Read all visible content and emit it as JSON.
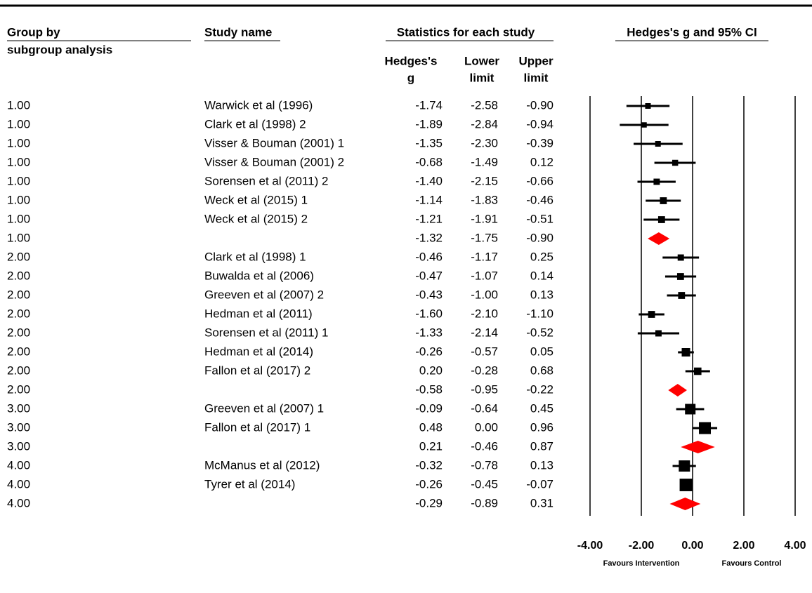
{
  "chart_data": {
    "type": "forest",
    "headers": {
      "group": "Group by",
      "group_sub": "subgroup analysis",
      "study": "Study name",
      "stats": "Statistics for each study",
      "plot": "Hedges's g and 95% CI",
      "g": [
        "Hedges's",
        "g"
      ],
      "lower": [
        "Lower",
        "limit"
      ],
      "upper": [
        "Upper",
        "limit"
      ]
    },
    "groups": [
      "1.00",
      "1.00",
      "1.00",
      "1.00",
      "1.00",
      "1.00",
      "1.00",
      "1.00",
      "2.00",
      "2.00",
      "2.00",
      "2.00",
      "2.00",
      "2.00",
      "2.00",
      "2.00",
      "3.00",
      "3.00",
      "3.00",
      "4.00",
      "4.00",
      "4.00"
    ],
    "studies": [
      "Warwick et al (1996)",
      "Clark et al (1998) 2",
      "Visser & Bouman (2001) 1",
      "Visser & Bouman (2001) 2",
      "Sorensen et al (2011) 2",
      "Weck et al (2015) 1",
      "Weck et al (2015) 2",
      null,
      "Clark et al (1998) 1",
      "Buwalda et al (2006)",
      "Greeven et al (2007) 2",
      "Hedman et al (2011)",
      "Sorensen et al (2011) 1",
      "Hedman et al (2014)",
      "Fallon et al (2017) 2",
      null,
      "Greeven et al (2007) 1",
      "Fallon et al (2017) 1",
      null,
      "McManus et al (2012)",
      "Tyrer et al (2014)",
      null
    ],
    "values": [
      -1.74,
      -1.89,
      -1.35,
      -0.68,
      -1.4,
      -1.14,
      -1.21,
      -1.32,
      -0.46,
      -0.47,
      -0.43,
      -1.6,
      -1.33,
      -0.26,
      0.2,
      -0.58,
      -0.09,
      0.48,
      0.21,
      -0.32,
      -0.26,
      -0.29
    ],
    "value_labels": [
      "-1.74",
      "-1.89",
      "-1.35",
      "-0.68",
      "-1.40",
      "-1.14",
      "-1.21",
      "-1.32",
      "-0.46",
      "-0.47",
      "-0.43",
      "-1.60",
      "-1.33",
      "-0.26",
      "0.20",
      "-0.58",
      "-0.09",
      "0.48",
      "0.21",
      "-0.32",
      "-0.26",
      "-0.29"
    ],
    "lower": [
      -2.58,
      -2.84,
      -2.3,
      -1.49,
      -2.15,
      -1.83,
      -1.91,
      -1.75,
      -1.17,
      -1.07,
      -1,
      -2.1,
      -2.14,
      -0.57,
      -0.28,
      -0.95,
      -0.64,
      0,
      -0.46,
      -0.78,
      -0.45,
      -0.89
    ],
    "lower_labels": [
      "-2.58",
      "-2.84",
      "-2.30",
      "-1.49",
      "-2.15",
      "-1.83",
      "-1.91",
      "-1.75",
      "-1.17",
      "-1.07",
      "-1.00",
      "-2.10",
      "-2.14",
      "-0.57",
      "-0.28",
      "-0.95",
      "-0.64",
      "0.00",
      "-0.46",
      "-0.78",
      "-0.45",
      "-0.89"
    ],
    "upper": [
      -0.9,
      -0.94,
      -0.39,
      0.12,
      -0.66,
      -0.46,
      -0.51,
      -0.9,
      0.25,
      0.14,
      0.13,
      -1.1,
      -0.52,
      0.05,
      0.68,
      -0.22,
      0.45,
      0.96,
      0.87,
      0.13,
      -0.07,
      0.31
    ],
    "upper_labels": [
      "-0.90",
      "-0.94",
      "-0.39",
      "0.12",
      "-0.66",
      "-0.46",
      "-0.51",
      "-0.90",
      "0.25",
      "0.14",
      "0.13",
      "-1.10",
      "-0.52",
      "0.05",
      "0.68",
      "-0.22",
      "0.45",
      "0.96",
      "0.87",
      "0.13",
      "-0.07",
      "0.31"
    ],
    "weights": [
      4,
      3.5,
      4,
      4.5,
      5,
      6,
      6,
      null,
      5,
      6,
      6,
      6,
      5,
      9,
      7,
      null,
      14,
      18,
      null,
      16,
      20,
      null
    ],
    "xlim": [
      -4,
      4
    ],
    "xticks": [
      {
        "value": -4,
        "label": "-4.00"
      },
      {
        "value": -2,
        "label": "-2.00"
      },
      {
        "value": 0,
        "label": "0.00"
      },
      {
        "value": 2,
        "label": "2.00"
      },
      {
        "value": 4,
        "label": "4.00"
      }
    ],
    "x_label_left": "Favours Intervention",
    "x_label_right": "Favours Control",
    "grid": true,
    "marker_color": "#000000",
    "summary_color": "#ff0000"
  }
}
